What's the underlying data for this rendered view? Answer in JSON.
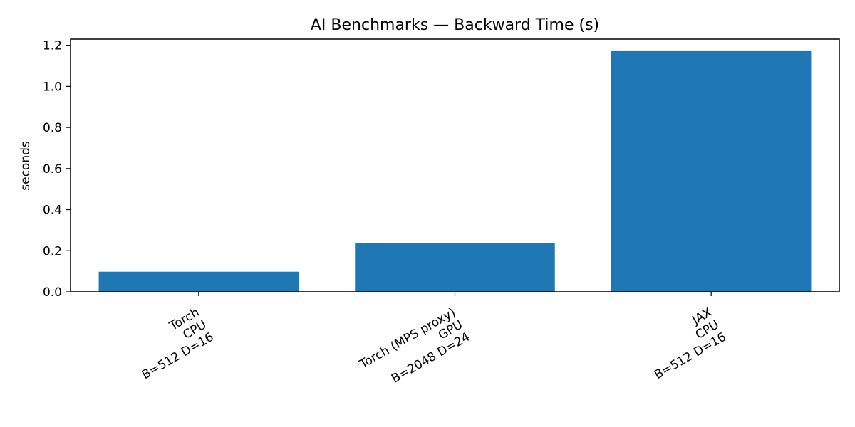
{
  "chart_data": {
    "type": "bar",
    "title": "AI Benchmarks — Backward Time (s)",
    "xlabel": "",
    "ylabel": "seconds",
    "categories": [
      [
        "Torch",
        "CPU",
        "B=512 D=16"
      ],
      [
        "Torch (MPS proxy)",
        "GPU",
        "B=2048 D=24"
      ],
      [
        "JAX",
        "CPU",
        "B=512 D=16"
      ]
    ],
    "values": [
      0.098,
      0.238,
      1.175
    ],
    "ylim": [
      0,
      1.23
    ],
    "yticks": [
      "0.0",
      "0.2",
      "0.4",
      "0.6",
      "0.8",
      "1.0",
      "1.2"
    ],
    "ytick_values": [
      0,
      0.2,
      0.4,
      0.6,
      0.8,
      1.0,
      1.2
    ],
    "bar_color": "#1f77b4",
    "grid": false,
    "legend": "none"
  }
}
